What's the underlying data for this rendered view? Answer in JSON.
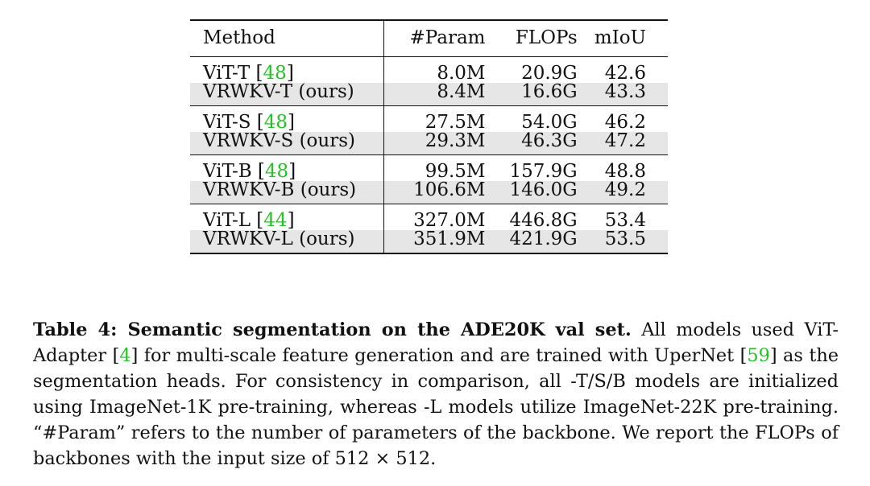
{
  "table": {
    "headers": [
      "Method",
      "#Param",
      "FLOPs",
      "mIoU"
    ],
    "groups": [
      {
        "rows": [
          {
            "method": "ViT-T",
            "ref": "48",
            "param": "8.0M",
            "flops": "20.9G",
            "miou": "42.6"
          },
          {
            "method": "VRWKV-T (ours)",
            "ref": "",
            "param": "8.4M",
            "flops": "16.6G",
            "miou": "43.3"
          }
        ]
      },
      {
        "rows": [
          {
            "method": "ViT-S",
            "ref": "48",
            "param": "27.5M",
            "flops": "54.0G",
            "miou": "46.2"
          },
          {
            "method": "VRWKV-S (ours)",
            "ref": "",
            "param": "29.3M",
            "flops": "46.3G",
            "miou": "47.2"
          }
        ]
      },
      {
        "rows": [
          {
            "method": "ViT-B",
            "ref": "48",
            "param": "99.5M",
            "flops": "157.9G",
            "miou": "48.8"
          },
          {
            "method": "VRWKV-B (ours)",
            "ref": "",
            "param": "106.6M",
            "flops": "146.0G",
            "miou": "49.2"
          }
        ]
      },
      {
        "rows": [
          {
            "method": "ViT-L",
            "ref": "44",
            "param": "327.0M",
            "flops": "446.8G",
            "miou": "53.4"
          },
          {
            "method": "VRWKV-L (ours)",
            "ref": "",
            "param": "351.9M",
            "flops": "421.9G",
            "miou": "53.5"
          }
        ]
      }
    ]
  },
  "caption": {
    "bold": "Table 4: Semantic segmentation on the ADE20K val set.",
    "t1": " All models used ViT-Adapter [",
    "ref1": "4",
    "t2": "] for multi-scale feature generation and are trained with UperNet [",
    "ref2": "59",
    "t3": "] as the segmentation heads. For consistency in comparison, all -T/S/B models are initialized using ImageNet-1K pre-training, whereas -L models utilize ImageNet-22K pre-training. “#Param” refers to the number of parameters of the backbone. We report the FLOPs of backbones with the input size of 512 × 512."
  },
  "colors": {
    "ref_link": "#22c322",
    "highlight_row": "#e6e6e6"
  }
}
